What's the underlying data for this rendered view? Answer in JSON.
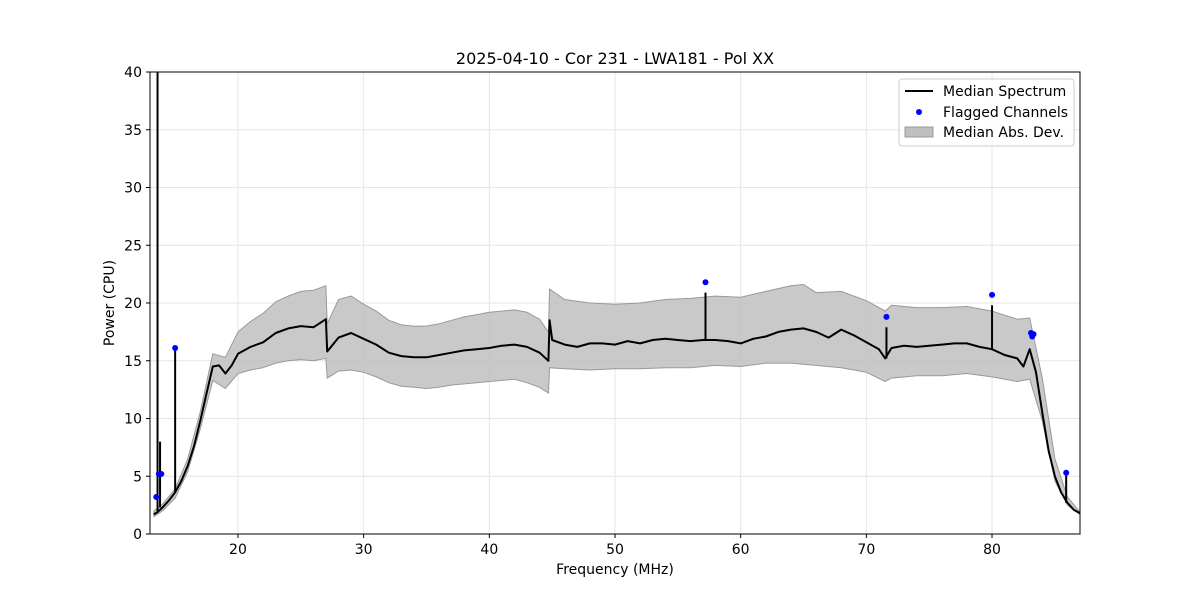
{
  "chart_data": {
    "type": "line",
    "title": "2025-04-10 - Cor 231 - LWA181 - Pol XX",
    "xlabel": "Frequency (MHz)",
    "ylabel": "Power (CPU)",
    "xlim": [
      13,
      87
    ],
    "ylim": [
      0,
      40
    ],
    "xticks": [
      20,
      30,
      40,
      50,
      60,
      70,
      80
    ],
    "yticks": [
      0,
      5,
      10,
      15,
      20,
      25,
      30,
      35,
      40
    ],
    "grid": true,
    "legend_position": "top-right",
    "colors": {
      "median": "#000000",
      "flagged": "#0000ff",
      "band": "#bfbfbf",
      "band_edge": "#999999"
    },
    "series": [
      {
        "name": "Median Spectrum",
        "kind": "line",
        "x": [
          13.3,
          13.6,
          14.0,
          14.5,
          15.0,
          15.5,
          16.0,
          16.5,
          17.0,
          17.5,
          18.0,
          18.5,
          19.0,
          19.5,
          20.0,
          21.0,
          22.0,
          23.0,
          24.0,
          25.0,
          26.0,
          27.0,
          27.1,
          28.0,
          29.0,
          30.0,
          31.0,
          32.0,
          33.0,
          34.0,
          35.0,
          36.0,
          37.0,
          38.0,
          39.0,
          40.0,
          41.0,
          42.0,
          43.0,
          44.0,
          44.7,
          44.8,
          45.0,
          46.0,
          47.0,
          48.0,
          49.0,
          50.0,
          51.0,
          52.0,
          53.0,
          54.0,
          55.0,
          56.0,
          57.0,
          58.0,
          59.0,
          60.0,
          61.0,
          62.0,
          63.0,
          64.0,
          65.0,
          66.0,
          67.0,
          68.0,
          69.0,
          70.0,
          71.0,
          71.5,
          72.0,
          73.0,
          74.0,
          75.0,
          76.0,
          77.0,
          78.0,
          79.0,
          80.0,
          81.0,
          82.0,
          82.5,
          83.0,
          83.5,
          84.0,
          84.5,
          85.0,
          85.5,
          86.0,
          86.5,
          87.0
        ],
        "y": [
          1.7,
          1.9,
          2.3,
          2.9,
          3.6,
          4.6,
          5.9,
          7.6,
          9.8,
          12.2,
          14.5,
          14.6,
          13.9,
          14.6,
          15.6,
          16.2,
          16.6,
          17.4,
          17.8,
          18.0,
          17.9,
          18.6,
          15.8,
          17.0,
          17.4,
          16.9,
          16.4,
          15.7,
          15.4,
          15.3,
          15.3,
          15.5,
          15.7,
          15.9,
          16.0,
          16.1,
          16.3,
          16.4,
          16.2,
          15.7,
          15.0,
          18.5,
          16.8,
          16.4,
          16.2,
          16.5,
          16.5,
          16.4,
          16.7,
          16.5,
          16.8,
          16.9,
          16.8,
          16.7,
          16.8,
          16.8,
          16.7,
          16.5,
          16.9,
          17.1,
          17.5,
          17.7,
          17.8,
          17.5,
          17.0,
          17.7,
          17.2,
          16.6,
          16.0,
          15.2,
          16.1,
          16.3,
          16.2,
          16.3,
          16.4,
          16.5,
          16.5,
          16.2,
          16.0,
          15.5,
          15.2,
          14.5,
          16.0,
          14.0,
          10.5,
          7.2,
          5.0,
          3.6,
          2.7,
          2.1,
          1.8
        ]
      },
      {
        "name": "Flagged Channels",
        "kind": "scatter",
        "x": [
          13.5,
          13.7,
          13.9,
          15.0,
          57.2,
          71.6,
          80.0,
          83.1,
          83.2,
          83.3,
          85.9
        ],
        "y": [
          3.2,
          5.2,
          5.2,
          16.1,
          21.8,
          18.8,
          20.7,
          17.4,
          17.1,
          17.3,
          5.3
        ]
      },
      {
        "name": "Median Abs. Dev.",
        "kind": "band",
        "x": [
          13.3,
          14.0,
          15.0,
          16.0,
          17.0,
          18.0,
          19.0,
          20.0,
          21.0,
          22.0,
          23.0,
          24.0,
          25.0,
          26.0,
          27.0,
          27.1,
          28.0,
          29.0,
          30.0,
          31.0,
          32.0,
          33.0,
          34.0,
          35.0,
          36.0,
          37.0,
          38.0,
          39.0,
          40.0,
          41.0,
          42.0,
          43.0,
          44.0,
          44.7,
          44.8,
          46.0,
          48.0,
          50.0,
          52.0,
          54.0,
          56.0,
          58.0,
          60.0,
          62.0,
          64.0,
          65.0,
          66.0,
          68.0,
          70.0,
          71.5,
          72.0,
          74.0,
          76.0,
          78.0,
          80.0,
          82.0,
          83.0,
          84.0,
          85.0,
          86.0,
          87.0
        ],
        "low": [
          1.5,
          2.0,
          3.1,
          5.4,
          9.1,
          13.3,
          12.6,
          13.9,
          14.2,
          14.4,
          14.8,
          15.0,
          15.1,
          15.0,
          15.2,
          13.5,
          14.1,
          14.2,
          14.0,
          13.6,
          13.1,
          12.8,
          12.7,
          12.6,
          12.7,
          12.9,
          13.0,
          13.1,
          13.2,
          13.3,
          13.4,
          13.1,
          12.7,
          12.2,
          14.4,
          14.3,
          14.2,
          14.3,
          14.3,
          14.4,
          14.4,
          14.6,
          14.5,
          14.8,
          14.8,
          14.7,
          14.6,
          14.4,
          14.0,
          13.2,
          13.5,
          13.7,
          13.7,
          13.9,
          13.6,
          13.2,
          13.4,
          9.8,
          4.6,
          2.5,
          1.7
        ],
        "high": [
          2.0,
          2.6,
          3.9,
          6.5,
          10.6,
          15.6,
          15.3,
          17.5,
          18.4,
          19.1,
          20.1,
          20.6,
          21.0,
          21.1,
          21.5,
          18.2,
          20.3,
          20.6,
          19.9,
          19.3,
          18.5,
          18.1,
          18.0,
          18.0,
          18.2,
          18.5,
          18.8,
          19.0,
          19.2,
          19.3,
          19.4,
          19.2,
          18.6,
          17.5,
          21.2,
          20.3,
          20.0,
          19.9,
          20.0,
          20.3,
          20.4,
          20.6,
          20.5,
          21.0,
          21.5,
          21.6,
          20.9,
          21.0,
          20.2,
          19.3,
          19.8,
          19.6,
          19.6,
          19.7,
          19.3,
          18.6,
          18.7,
          13.5,
          6.5,
          3.2,
          1.9
        ]
      }
    ],
    "spikes": [
      {
        "x": 13.6,
        "y": 40.0
      },
      {
        "x": 13.8,
        "y": 8.0
      },
      {
        "x": 15.0,
        "y": 16.1
      },
      {
        "x": 57.2,
        "y": 20.9
      },
      {
        "x": 71.6,
        "y": 17.9
      },
      {
        "x": 80.0,
        "y": 19.8
      },
      {
        "x": 85.9,
        "y": 5.1
      }
    ],
    "legend": [
      "Median Spectrum",
      "Flagged Channels",
      "Median Abs. Dev."
    ]
  }
}
